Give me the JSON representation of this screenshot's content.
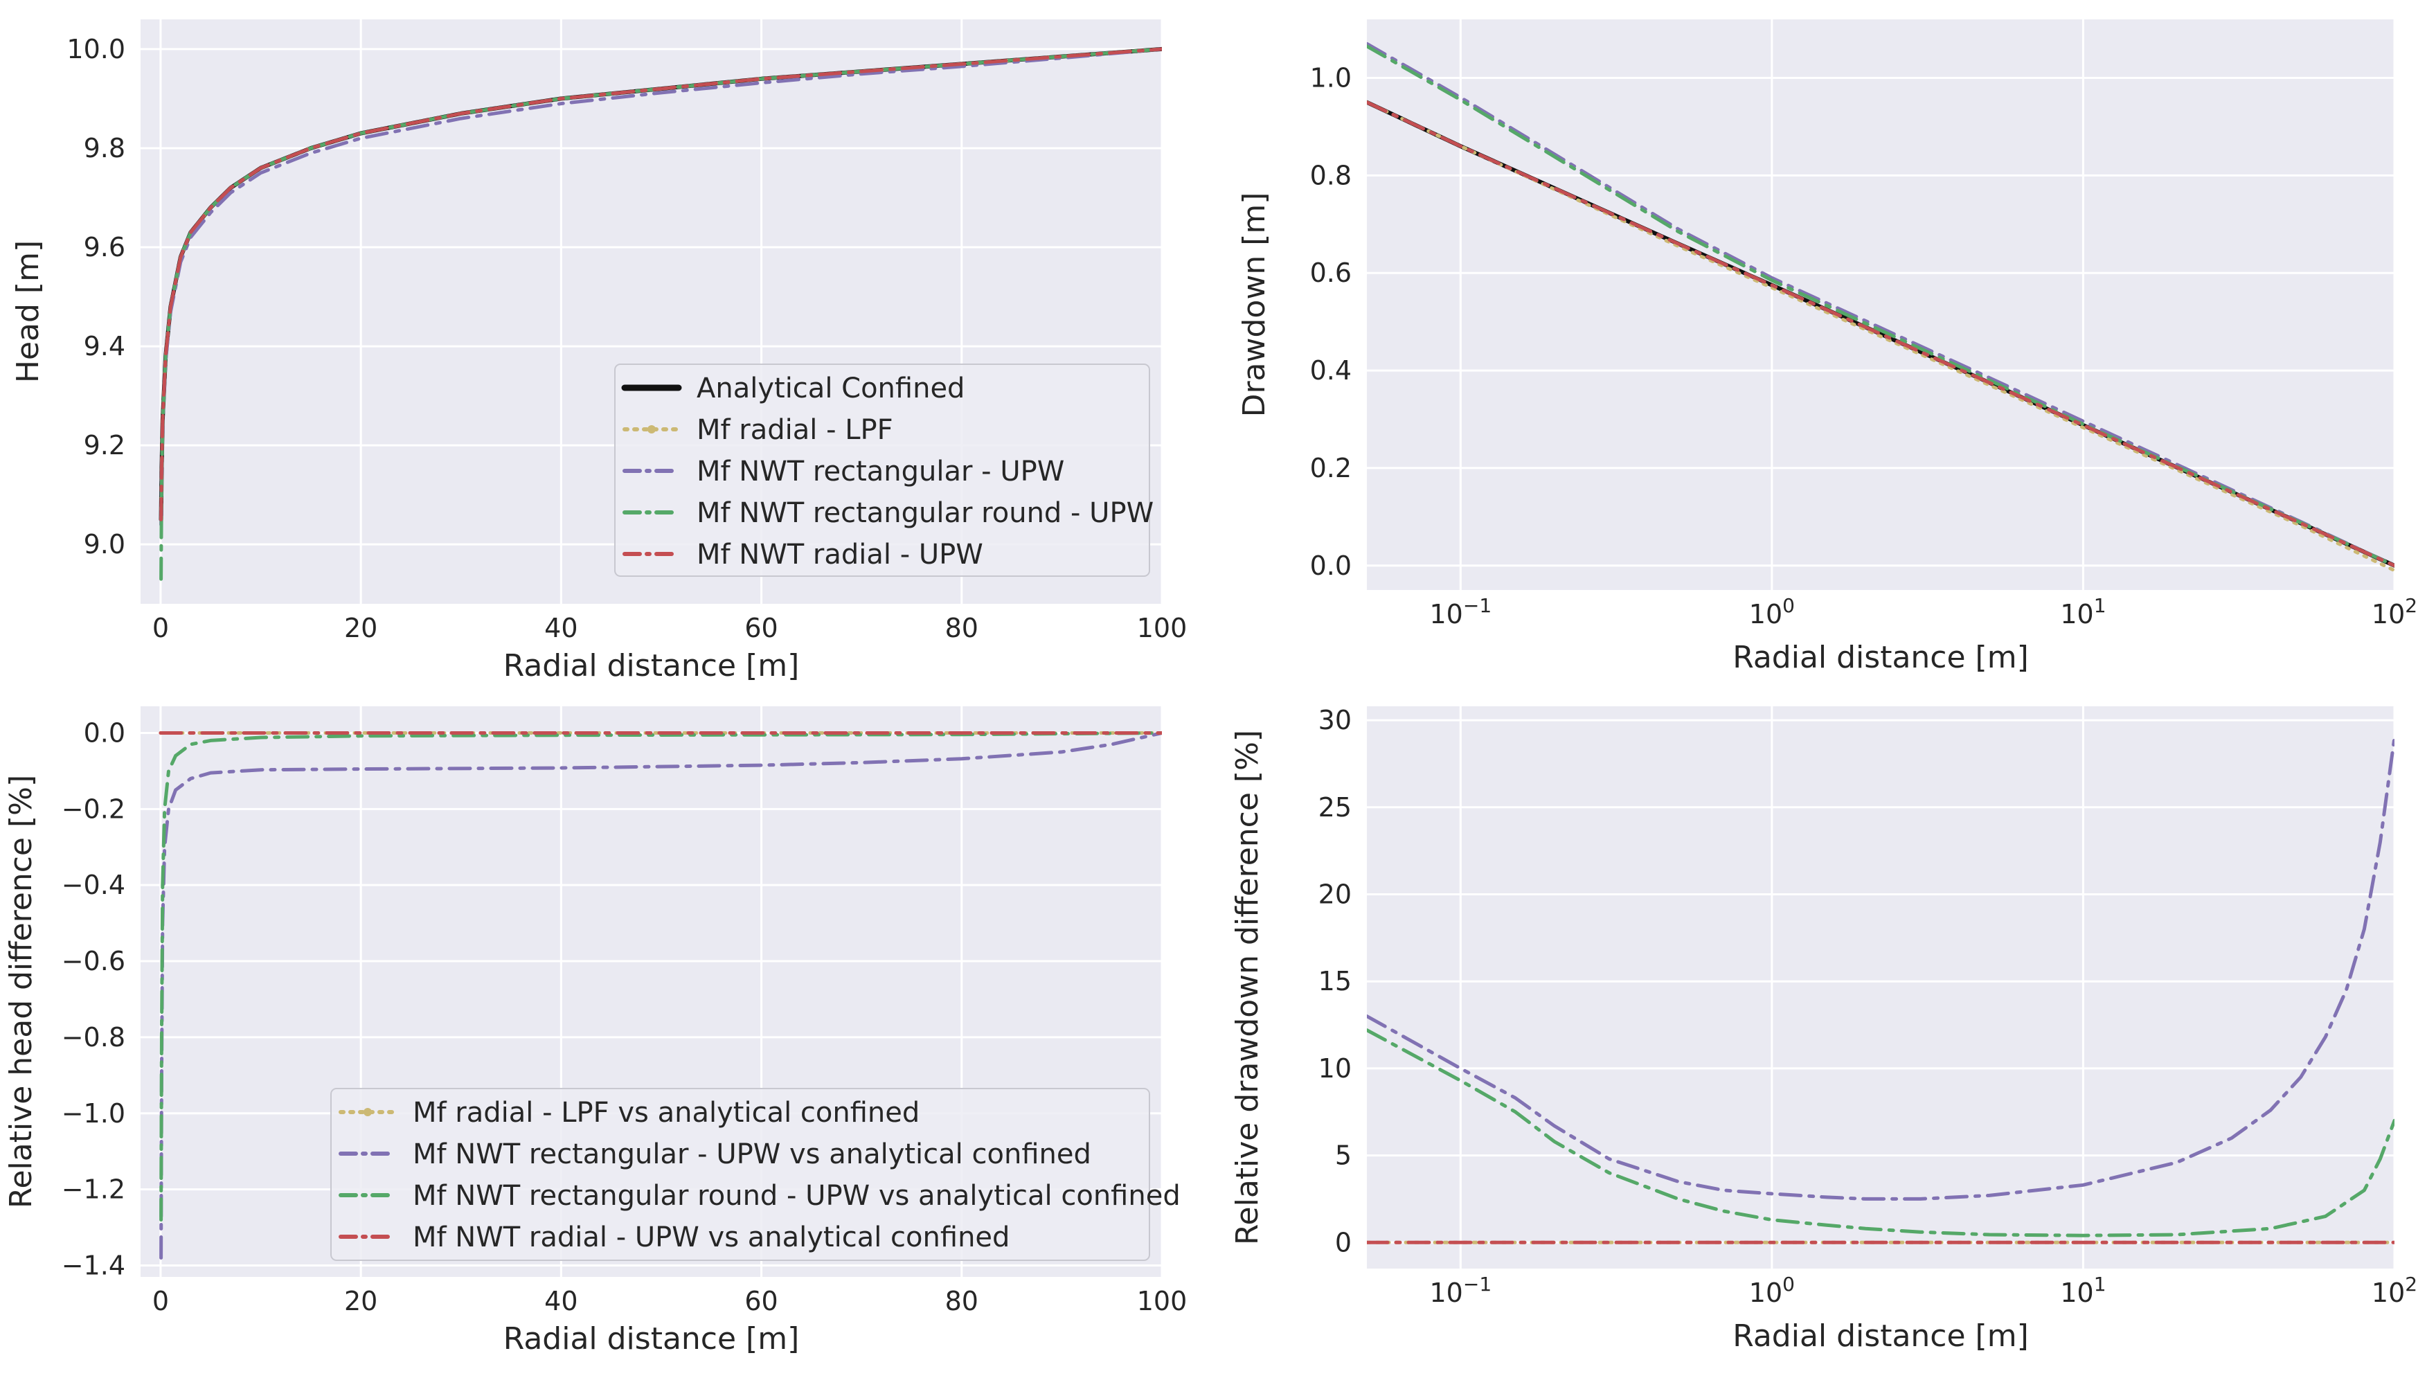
{
  "colors": {
    "background": "#eaeaf2",
    "grid": "#ffffff",
    "analytical": "#111111",
    "mf_radial_lpf": "#ccb974",
    "mf_nwt_rectangular": "#8172b3",
    "mf_nwt_rectangular_round": "#55a868",
    "mf_nwt_radial": "#c44e52"
  },
  "chart_data": [
    {
      "id": "head",
      "type": "line",
      "xlabel": "Radial distance [m]",
      "ylabel": "Head [m]",
      "xscale": "linear",
      "xlim": [
        -2,
        100
      ],
      "ylim": [
        8.88,
        10.06
      ],
      "xticks": [
        0,
        20,
        40,
        60,
        80,
        100
      ],
      "yticks": [
        9.0,
        9.2,
        9.4,
        9.6,
        9.8,
        10.0
      ],
      "xtick_labels": [
        "0",
        "20",
        "40",
        "60",
        "80",
        "100"
      ],
      "ytick_labels": [
        "9.0",
        "9.2",
        "9.4",
        "9.6",
        "9.8",
        "10.0"
      ],
      "grid": true,
      "legend_position": "lower-right",
      "series": [
        {
          "name": "Analytical Confined",
          "color": "#111111",
          "style": "solid",
          "width": 6,
          "x": [
            0.05,
            0.1,
            0.2,
            0.5,
            1,
            2,
            3,
            5,
            7,
            10,
            15,
            20,
            30,
            40,
            50,
            60,
            70,
            80,
            90,
            100
          ],
          "y": [
            9.05,
            9.15,
            9.25,
            9.38,
            9.48,
            9.58,
            9.63,
            9.68,
            9.72,
            9.76,
            9.8,
            9.83,
            9.87,
            9.9,
            9.92,
            9.94,
            9.955,
            9.97,
            9.985,
            10.0
          ]
        },
        {
          "name": "Mf radial - LPF",
          "color": "#ccb974",
          "style": "dotted",
          "width": 5,
          "x": [
            0.05,
            0.1,
            0.2,
            0.5,
            1,
            2,
            3,
            5,
            7,
            10,
            15,
            20,
            30,
            40,
            50,
            60,
            70,
            80,
            90,
            100
          ],
          "y": [
            9.05,
            9.15,
            9.25,
            9.38,
            9.48,
            9.58,
            9.63,
            9.68,
            9.72,
            9.76,
            9.8,
            9.83,
            9.87,
            9.9,
            9.92,
            9.94,
            9.955,
            9.97,
            9.985,
            10.0
          ]
        },
        {
          "name": "Mf NWT rectangular - UPW",
          "color": "#8172b3",
          "style": "dashdot",
          "width": 5,
          "x": [
            0.05,
            0.1,
            0.2,
            0.5,
            1,
            2,
            3,
            5,
            7,
            10,
            15,
            20,
            30,
            40,
            50,
            60,
            70,
            80,
            90,
            100
          ],
          "y": [
            9.04,
            9.14,
            9.24,
            9.37,
            9.47,
            9.57,
            9.62,
            9.67,
            9.71,
            9.75,
            9.79,
            9.82,
            9.86,
            9.89,
            9.912,
            9.932,
            9.95,
            9.965,
            9.982,
            10.0
          ]
        },
        {
          "name": "Mf NWT rectangular round - UPW",
          "color": "#55a868",
          "style": "dashdot",
          "width": 5,
          "x": [
            0.05,
            0.1,
            0.2,
            0.5,
            1,
            2,
            3,
            5,
            7,
            10,
            15,
            20,
            30,
            40,
            50,
            60,
            70,
            80,
            90,
            100
          ],
          "y": [
            8.93,
            9.12,
            9.24,
            9.38,
            9.48,
            9.58,
            9.63,
            9.68,
            9.72,
            9.76,
            9.8,
            9.83,
            9.87,
            9.9,
            9.92,
            9.94,
            9.955,
            9.97,
            9.985,
            10.0
          ]
        },
        {
          "name": "Mf NWT radial - UPW",
          "color": "#c44e52",
          "style": "dashdot",
          "width": 5,
          "x": [
            0.05,
            0.1,
            0.2,
            0.5,
            1,
            2,
            3,
            5,
            7,
            10,
            15,
            20,
            30,
            40,
            50,
            60,
            70,
            80,
            90,
            100
          ],
          "y": [
            9.05,
            9.15,
            9.25,
            9.38,
            9.48,
            9.58,
            9.63,
            9.68,
            9.72,
            9.76,
            9.8,
            9.83,
            9.87,
            9.9,
            9.92,
            9.94,
            9.955,
            9.97,
            9.985,
            10.0
          ]
        }
      ]
    },
    {
      "id": "drawdown",
      "type": "line",
      "xlabel": "Radial distance [m]",
      "ylabel": "Drawdown [m]",
      "xscale": "log",
      "xlim": [
        0.05,
        100
      ],
      "ylim": [
        -0.05,
        1.12
      ],
      "xticks": [
        0.1,
        1,
        10,
        100
      ],
      "yticks": [
        0.0,
        0.2,
        0.4,
        0.6,
        0.8,
        1.0
      ],
      "xtick_labels": [
        {
          "base": "10",
          "exp": "−1"
        },
        {
          "base": "10",
          "exp": "0"
        },
        {
          "base": "10",
          "exp": "1"
        },
        {
          "base": "10",
          "exp": "2"
        }
      ],
      "ytick_labels": [
        "0.0",
        "0.2",
        "0.4",
        "0.6",
        "0.8",
        "1.0"
      ],
      "grid": true,
      "series": [
        {
          "name": "Analytical Confined",
          "color": "#111111",
          "style": "solid",
          "width": 6,
          "x": [
            0.05,
            0.1,
            0.5,
            1,
            5,
            10,
            50,
            100
          ],
          "y": [
            0.95,
            0.86,
            0.66,
            0.575,
            0.375,
            0.288,
            0.087,
            0.0
          ]
        },
        {
          "name": "Mf radial - LPF",
          "color": "#ccb974",
          "style": "dotted",
          "width": 5,
          "x": [
            0.05,
            0.1,
            0.5,
            1,
            5,
            10,
            50,
            100
          ],
          "y": [
            0.95,
            0.86,
            0.655,
            0.57,
            0.37,
            0.283,
            0.082,
            -0.01
          ]
        },
        {
          "name": "Mf NWT rectangular - UPW",
          "color": "#8172b3",
          "style": "dashdot",
          "width": 5,
          "x": [
            0.05,
            0.1,
            0.5,
            1,
            5,
            10,
            50,
            100
          ],
          "y": [
            1.07,
            0.96,
            0.69,
            0.59,
            0.385,
            0.296,
            0.09,
            0.0
          ]
        },
        {
          "name": "Mf NWT rectangular round - UPW",
          "color": "#55a868",
          "style": "dashdot",
          "width": 5,
          "x": [
            0.05,
            0.1,
            0.5,
            1,
            5,
            10,
            50,
            100
          ],
          "y": [
            1.065,
            0.955,
            0.685,
            0.585,
            0.38,
            0.29,
            0.088,
            0.0
          ]
        },
        {
          "name": "Mf NWT radial - UPW",
          "color": "#c44e52",
          "style": "dashdot",
          "width": 5,
          "x": [
            0.05,
            0.1,
            0.5,
            1,
            5,
            10,
            50,
            100
          ],
          "y": [
            0.95,
            0.86,
            0.66,
            0.575,
            0.375,
            0.288,
            0.087,
            0.0
          ]
        }
      ]
    },
    {
      "id": "head-diff",
      "type": "line",
      "xlabel": "Radial distance [m]",
      "ylabel": "Relative head difference [%]",
      "xscale": "linear",
      "xlim": [
        -2,
        100
      ],
      "ylim": [
        -1.43,
        0.07
      ],
      "xticks": [
        0,
        20,
        40,
        60,
        80,
        100
      ],
      "yticks": [
        0.0,
        -0.2,
        -0.4,
        -0.6,
        -0.8,
        -1.0,
        -1.2,
        -1.4
      ],
      "xtick_labels": [
        "0",
        "20",
        "40",
        "60",
        "80",
        "100"
      ],
      "ytick_labels": [
        "0.0",
        "−0.2",
        "−0.4",
        "−0.6",
        "−0.8",
        "−1.0",
        "−1.2",
        "−1.4"
      ],
      "grid": true,
      "legend_position": "lower-right",
      "series": [
        {
          "name": "Mf radial - LPF vs analytical confined",
          "color": "#ccb974",
          "style": "dotted",
          "width": 5,
          "x": [
            0,
            10,
            20,
            40,
            60,
            80,
            100
          ],
          "y": [
            0,
            0,
            0,
            0,
            0,
            0,
            0
          ]
        },
        {
          "name": "Mf NWT rectangular - UPW vs analytical confined",
          "color": "#8172b3",
          "style": "dashdot",
          "width": 5,
          "x": [
            0.05,
            0.1,
            0.2,
            0.4,
            0.8,
            1.5,
            3,
            5,
            10,
            20,
            40,
            60,
            70,
            80,
            90,
            95,
            100
          ],
          "y": [
            -1.38,
            -0.9,
            -0.5,
            -0.3,
            -0.2,
            -0.15,
            -0.12,
            -0.105,
            -0.097,
            -0.095,
            -0.092,
            -0.085,
            -0.078,
            -0.068,
            -0.05,
            -0.03,
            0.0
          ]
        },
        {
          "name": "Mf NWT rectangular round - UPW vs analytical confined",
          "color": "#55a868",
          "style": "dashdot",
          "width": 5,
          "x": [
            0.05,
            0.1,
            0.2,
            0.4,
            0.8,
            1.5,
            3,
            5,
            10,
            20,
            40,
            60,
            80,
            100
          ],
          "y": [
            -1.28,
            -0.8,
            -0.4,
            -0.2,
            -0.1,
            -0.06,
            -0.03,
            -0.02,
            -0.012,
            -0.008,
            -0.006,
            -0.005,
            -0.004,
            0.0
          ]
        },
        {
          "name": "Mf NWT radial - UPW vs analytical confined",
          "color": "#c44e52",
          "style": "dashdot",
          "width": 5,
          "x": [
            0,
            10,
            20,
            40,
            60,
            80,
            100
          ],
          "y": [
            0,
            0,
            0,
            0,
            0,
            0,
            0
          ]
        }
      ]
    },
    {
      "id": "drawdown-diff",
      "type": "line",
      "xlabel": "Radial distance [m]",
      "ylabel": "Relative drawdown difference [%]",
      "xscale": "log",
      "xlim": [
        0.05,
        100
      ],
      "ylim": [
        -1.5,
        30.8
      ],
      "xticks": [
        0.1,
        1,
        10,
        100
      ],
      "yticks": [
        0,
        5,
        10,
        15,
        20,
        25,
        30
      ],
      "xtick_labels": [
        {
          "base": "10",
          "exp": "−1"
        },
        {
          "base": "10",
          "exp": "0"
        },
        {
          "base": "10",
          "exp": "1"
        },
        {
          "base": "10",
          "exp": "2"
        }
      ],
      "ytick_labels": [
        "0",
        "5",
        "10",
        "15",
        "20",
        "25",
        "30"
      ],
      "grid": true,
      "series": [
        {
          "name": "Mf radial - LPF vs analytical confined",
          "color": "#ccb974",
          "style": "dotted",
          "width": 5,
          "x": [
            0.05,
            0.1,
            1,
            10,
            100
          ],
          "y": [
            0,
            0,
            0,
            0,
            0
          ]
        },
        {
          "name": "Mf NWT rectangular - UPW vs analytical confined",
          "color": "#8172b3",
          "style": "dashdot",
          "width": 5,
          "x": [
            0.05,
            0.1,
            0.15,
            0.2,
            0.3,
            0.5,
            0.7,
            1,
            1.5,
            2,
            3,
            5,
            10,
            20,
            30,
            40,
            50,
            60,
            70,
            80,
            90,
            100
          ],
          "y": [
            13.0,
            10.0,
            8.3,
            6.7,
            4.8,
            3.5,
            3.0,
            2.8,
            2.6,
            2.5,
            2.5,
            2.7,
            3.3,
            4.6,
            6.0,
            7.6,
            9.5,
            11.8,
            14.5,
            18.0,
            23.0,
            29.0
          ]
        },
        {
          "name": "Mf NWT rectangular round - UPW vs analytical confined",
          "color": "#55a868",
          "style": "dashdot",
          "width": 5,
          "x": [
            0.05,
            0.1,
            0.15,
            0.2,
            0.3,
            0.5,
            0.7,
            1,
            1.5,
            2,
            3,
            5,
            10,
            20,
            40,
            60,
            80,
            90,
            100
          ],
          "y": [
            12.2,
            9.3,
            7.5,
            5.8,
            4.0,
            2.5,
            1.8,
            1.3,
            1.0,
            0.8,
            0.6,
            0.45,
            0.4,
            0.45,
            0.8,
            1.5,
            3.0,
            4.8,
            7.0
          ]
        },
        {
          "name": "Mf NWT radial - UPW vs analytical confined",
          "color": "#c44e52",
          "style": "dashdot",
          "width": 5,
          "x": [
            0.05,
            0.1,
            1,
            10,
            100
          ],
          "y": [
            0,
            0,
            0,
            0,
            0
          ]
        }
      ]
    }
  ]
}
